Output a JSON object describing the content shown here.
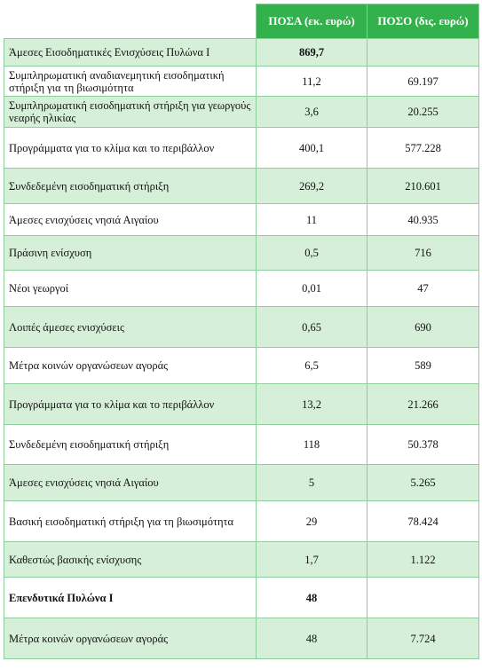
{
  "table": {
    "headers": [
      "",
      "ΠΟΣΑ (εκ. ευρώ)",
      "ΠΟΣΟ (δις. ευρώ)"
    ],
    "rows": [
      {
        "label": "Άμεσες Εισοδηματικές Ενισχύσεις Πυλώνα Ι",
        "amount_m": "869,7",
        "amount_b": "",
        "shaded": true,
        "bold_label": false,
        "bold_amount": true
      },
      {
        "label": "Συμπληρωματική αναδιανεμητική εισοδηματική στήριξη για τη βιωσιμότητα",
        "amount_m": "11,2",
        "amount_b": "69.197",
        "shaded": false,
        "bold_label": false,
        "bold_amount": false
      },
      {
        "label": "Συμπληρωματική εισοδηματική στήριξη για γεωργούς νεαρής ηλικίας",
        "amount_m": "3,6",
        "amount_b": "20.255",
        "shaded": true,
        "bold_label": false,
        "bold_amount": false
      },
      {
        "label": "Προγράμματα για το κλίμα και το περιβάλλον",
        "amount_m": "400,1",
        "amount_b": "577.228",
        "shaded": false,
        "bold_label": false,
        "bold_amount": false
      },
      {
        "label": "Συνδεδεμένη εισοδηματική στήριξη",
        "amount_m": "269,2",
        "amount_b": "210.601",
        "shaded": true,
        "bold_label": false,
        "bold_amount": false
      },
      {
        "label": "Άμεσες ενισχύσεις νησιά Αιγαίου",
        "amount_m": "11",
        "amount_b": "40.935",
        "shaded": false,
        "bold_label": false,
        "bold_amount": false
      },
      {
        "label": "Πράσινη ενίσχυση",
        "amount_m": "0,5",
        "amount_b": "716",
        "shaded": true,
        "bold_label": false,
        "bold_amount": false
      },
      {
        "label": "Νέοι γεωργοί",
        "amount_m": "0,01",
        "amount_b": "47",
        "shaded": false,
        "bold_label": false,
        "bold_amount": false
      },
      {
        "label": "Λοιπές άμεσες ενισχύσεις",
        "amount_m": "0,65",
        "amount_b": "690",
        "shaded": true,
        "bold_label": false,
        "bold_amount": false
      },
      {
        "label": "Μέτρα κοινών οργανώσεων αγοράς",
        "amount_m": "6,5",
        "amount_b": "589",
        "shaded": false,
        "bold_label": false,
        "bold_amount": false
      },
      {
        "label": "Προγράμματα για το κλίμα και το περιβάλλον",
        "amount_m": "13,2",
        "amount_b": "21.266",
        "shaded": true,
        "bold_label": false,
        "bold_amount": false
      },
      {
        "label": "Συνδεδεμένη εισοδηματική στήριξη",
        "amount_m": "118",
        "amount_b": "50.378",
        "shaded": false,
        "bold_label": false,
        "bold_amount": false
      },
      {
        "label": "Άμεσες ενισχύσεις νησιά Αιγαίου",
        "amount_m": "5",
        "amount_b": "5.265",
        "shaded": true,
        "bold_label": false,
        "bold_amount": false
      },
      {
        "label": "Βασική εισοδηματική στήριξη για τη βιωσιμότητα",
        "amount_m": "29",
        "amount_b": "78.424",
        "shaded": false,
        "bold_label": false,
        "bold_amount": false
      },
      {
        "label": "Καθεστώς βασικής ενίσχυσης",
        "amount_m": "1,7",
        "amount_b": "1.122",
        "shaded": true,
        "bold_label": false,
        "bold_amount": false
      },
      {
        "label": "Επενδυτικά Πυλώνα Ι",
        "amount_m": "48",
        "amount_b": "",
        "shaded": false,
        "bold_label": true,
        "bold_amount": true
      },
      {
        "label": "Μέτρα κοινών οργανώσεων αγοράς",
        "amount_m": "48",
        "amount_b": "7.724",
        "shaded": true,
        "bold_label": false,
        "bold_amount": false
      }
    ]
  },
  "colors": {
    "header_bg": "#33b14d",
    "shaded_row_bg": "#d5efd8",
    "border": "#8fce9c"
  }
}
